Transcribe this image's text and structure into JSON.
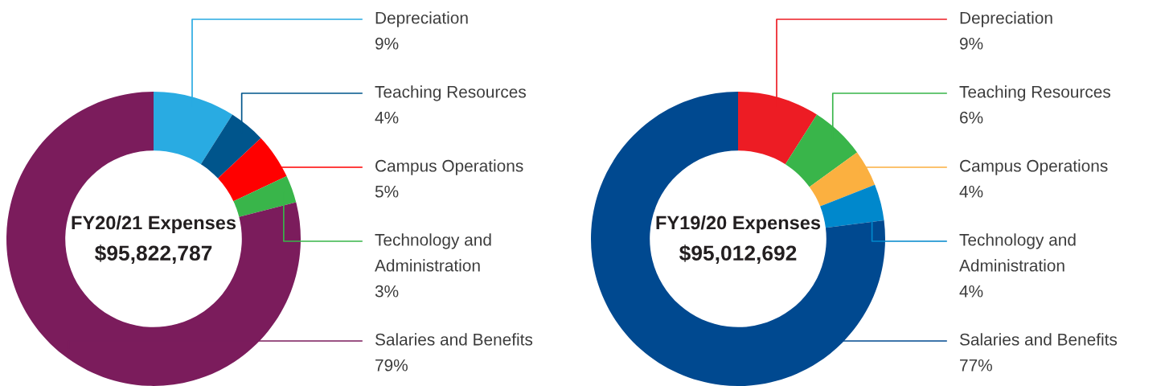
{
  "chart_data": [
    {
      "type": "donut",
      "title": "FY20/21 Expenses",
      "subtitle": "$95,822,787",
      "categories": [
        "Depreciation",
        "Teaching Resources",
        "Campus Operations",
        "Technology and Administration",
        "Salaries and Benefits"
      ],
      "values": [
        9,
        4,
        5,
        3,
        79
      ],
      "colors": [
        "#29abe2",
        "#00558c",
        "#ff0000",
        "#39b54a",
        "#7b1c5c"
      ],
      "value_labels": [
        "9%",
        "4%",
        "5%",
        "3%",
        "79%"
      ]
    },
    {
      "type": "donut",
      "title": "FY19/20 Expenses",
      "subtitle": "$95,012,692",
      "categories": [
        "Depreciation",
        "Teaching Resources",
        "Campus Operations",
        "Technology and Administration",
        "Salaries and Benefits"
      ],
      "values": [
        9,
        6,
        4,
        4,
        77
      ],
      "colors": [
        "#ed1c24",
        "#39b54a",
        "#fbb040",
        "#0088cc",
        "#004990"
      ],
      "value_labels": [
        "9%",
        "6%",
        "4%",
        "4%",
        "77%"
      ]
    }
  ]
}
